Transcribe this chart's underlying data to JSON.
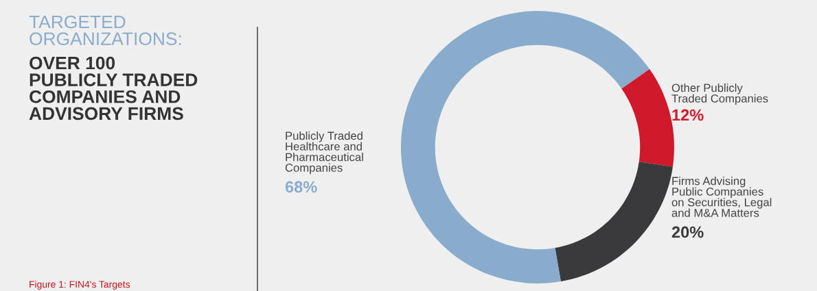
{
  "chart_data": {
    "type": "donut",
    "title": "TARGETED\nORGANIZATIONS:",
    "subtitle": "OVER 100\nPUBLICLY TRADED\nCOMPANIES AND\nADVISORY FIRMS",
    "categories": [
      "Other Publicly\nTraded Companies",
      "Firms Advising\nPublic Companies\non Securities, Legal\nand M&A Matters",
      "Publicly Traded\nHealthcare and\nPharmaceutical\nCompanies"
    ],
    "values": [
      12,
      20,
      68
    ],
    "value_labels": [
      "12%",
      "20%",
      "68%"
    ],
    "colors": [
      "#d0192b",
      "#3a3a3c",
      "#8aaccc"
    ],
    "annotations": [
      "Figure 1: FIN4's Targets"
    ],
    "legend": false
  }
}
